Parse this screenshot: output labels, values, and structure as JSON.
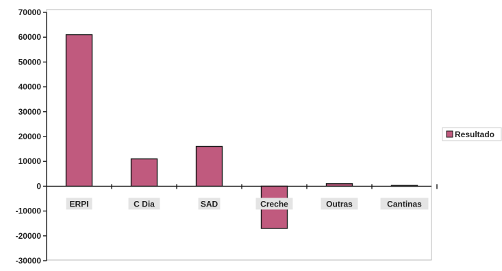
{
  "chart_data": {
    "type": "bar",
    "title": "",
    "xlabel": "",
    "ylabel": "",
    "categories": [
      "ERPI",
      "C Dia",
      "SAD",
      "Creche",
      "Outras",
      "Cantinas"
    ],
    "series": [
      {
        "name": "Resultado",
        "values": [
          61000,
          11000,
          16000,
          -17000,
          1000,
          300
        ]
      }
    ],
    "ylim": [
      -30000,
      70000
    ],
    "yticks": [
      70000,
      60000,
      50000,
      40000,
      30000,
      20000,
      10000,
      0,
      -10000,
      -20000,
      -30000
    ],
    "grid": false,
    "legend_position": "right",
    "colors": {
      "bar_fill": "#c05a7e",
      "bar_stroke": "#1a1a1a",
      "plot_border": "#b8b8b8",
      "axis": "#1a1a1a",
      "label_background": "#e4e4e4"
    }
  }
}
